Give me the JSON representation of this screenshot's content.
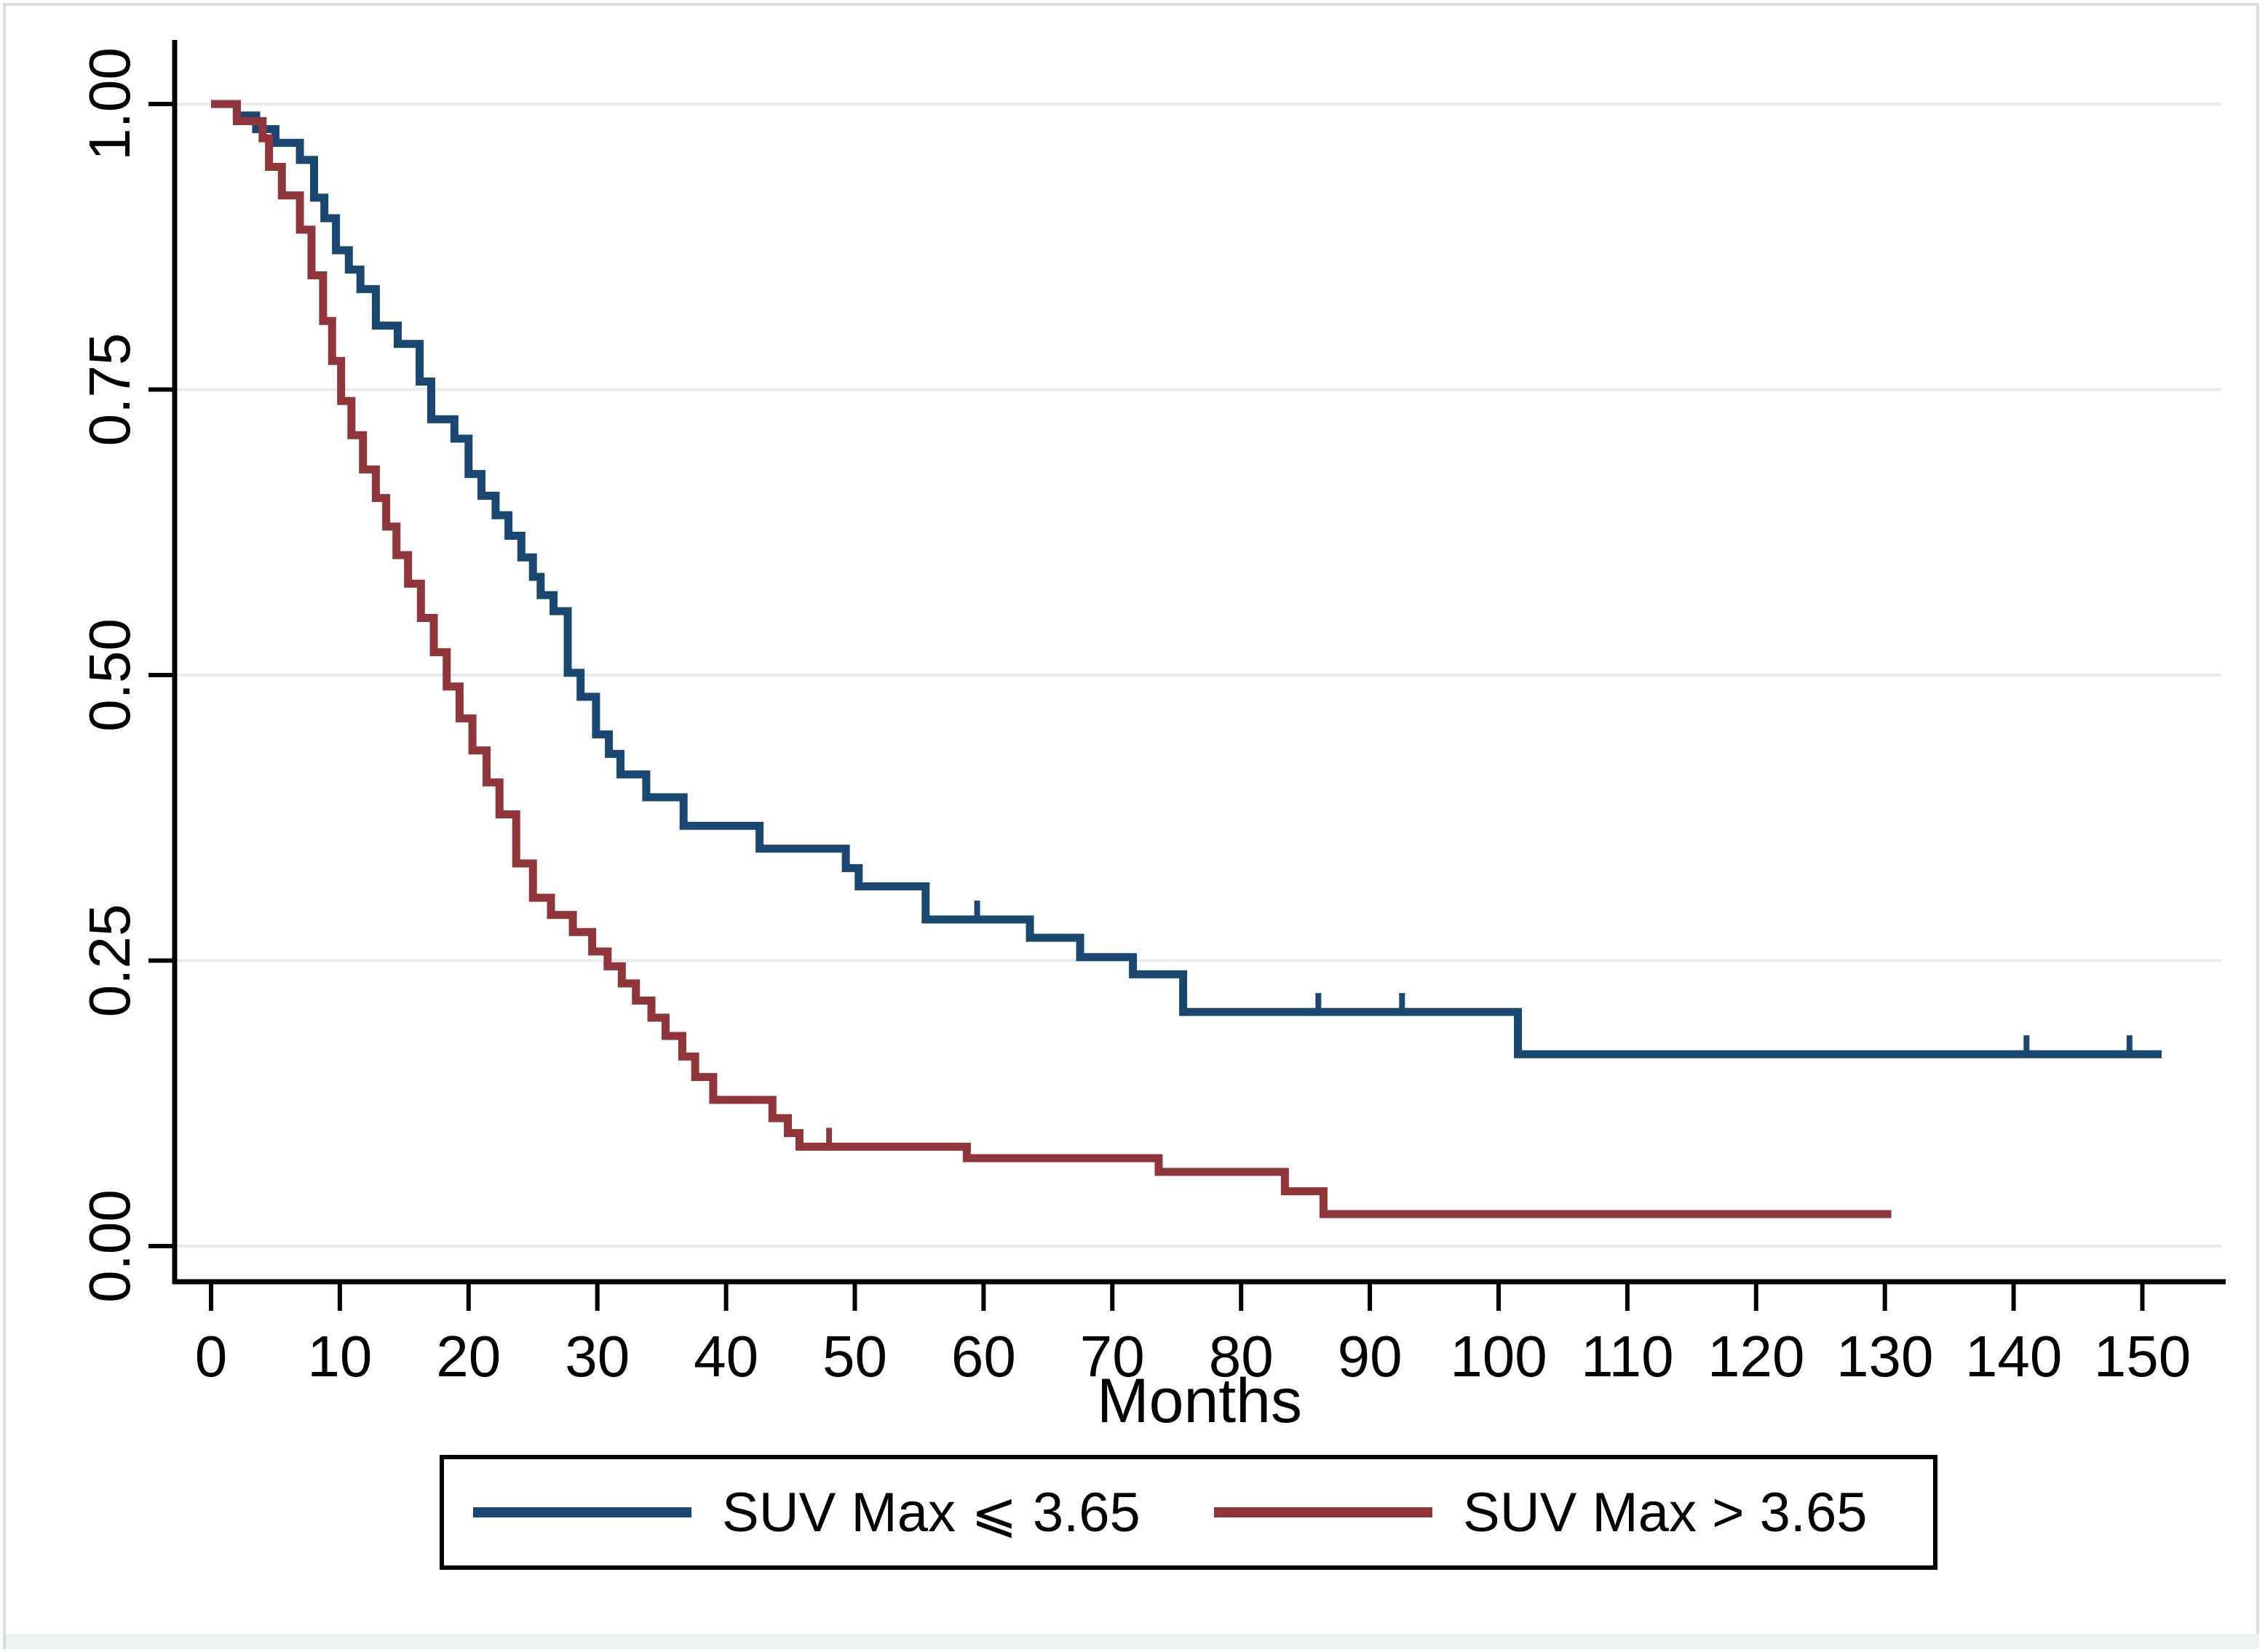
{
  "figure": {
    "background_color": "#ffffff",
    "border_color": "#d7dde0",
    "bottom_band_color": "#edf1f2",
    "gridline_color": "#e7ebeb",
    "axis_color": "#000000"
  },
  "chart_data": {
    "type": "line",
    "subtype": "kaplan-meier-step",
    "title": "",
    "xlabel": "Months",
    "ylabel": "",
    "xlim": [
      0,
      155
    ],
    "ylim": [
      0,
      1.0
    ],
    "grid": "horizontal",
    "legend_position": "bottom-center",
    "xticks": [
      0,
      10,
      20,
      30,
      40,
      50,
      60,
      70,
      80,
      90,
      100,
      110,
      120,
      130,
      140,
      150
    ],
    "xtick_labels": [
      "0",
      "10",
      "20",
      "30",
      "40",
      "50",
      "60",
      "70",
      "80",
      "90",
      "100",
      "110",
      "120",
      "130",
      "140",
      "150"
    ],
    "yticks": [
      0.0,
      0.25,
      0.5,
      0.75,
      1.0
    ],
    "ytick_labels": [
      "0.00",
      "0.25",
      "0.50",
      "0.75",
      "1.00"
    ],
    "series": [
      {
        "name": "SUV Max ⩽ 3.65",
        "color": "#1a476f",
        "start": [
          0,
          1.0
        ],
        "end_time": 151.5,
        "censor_times": [
          59.5,
          86,
          92.5,
          141,
          149
        ],
        "steps": [
          [
            2,
            0.99
          ],
          [
            3.5,
            0.978
          ],
          [
            5,
            0.966
          ],
          [
            6.9,
            0.951
          ],
          [
            8,
            0.918
          ],
          [
            8.8,
            0.9
          ],
          [
            9.7,
            0.872
          ],
          [
            10.7,
            0.855
          ],
          [
            11.6,
            0.838
          ],
          [
            12.8,
            0.806
          ],
          [
            14.5,
            0.79
          ],
          [
            16.2,
            0.757
          ],
          [
            17.1,
            0.724
          ],
          [
            18.9,
            0.707
          ],
          [
            20,
            0.676
          ],
          [
            21,
            0.657
          ],
          [
            22.1,
            0.64
          ],
          [
            23.1,
            0.622
          ],
          [
            24.1,
            0.603
          ],
          [
            25,
            0.586
          ],
          [
            25.6,
            0.57
          ],
          [
            26.6,
            0.556
          ],
          [
            27.7,
            0.502
          ],
          [
            28.7,
            0.481
          ],
          [
            29.9,
            0.448
          ],
          [
            30.9,
            0.431
          ],
          [
            31.8,
            0.413
          ],
          [
            33.8,
            0.393
          ],
          [
            36.7,
            0.368
          ],
          [
            42.6,
            0.348
          ],
          [
            49.3,
            0.331
          ],
          [
            50.3,
            0.315
          ],
          [
            55.5,
            0.286
          ],
          [
            63.6,
            0.27
          ],
          [
            67.5,
            0.253
          ],
          [
            71.6,
            0.238
          ],
          [
            75.5,
            0.205
          ],
          [
            101.5,
            0.168
          ]
        ]
      },
      {
        "name": "SUV Max > 3.65",
        "color": "#90353b",
        "start": [
          0,
          1.0
        ],
        "end_time": 130.5,
        "censor_times": [
          48
        ],
        "steps": [
          [
            2,
            0.985
          ],
          [
            4,
            0.97
          ],
          [
            4.5,
            0.945
          ],
          [
            5.5,
            0.92
          ],
          [
            6.9,
            0.89
          ],
          [
            7.8,
            0.85
          ],
          [
            8.7,
            0.81
          ],
          [
            9.4,
            0.775
          ],
          [
            10.1,
            0.74
          ],
          [
            10.9,
            0.71
          ],
          [
            11.8,
            0.68
          ],
          [
            12.8,
            0.655
          ],
          [
            13.6,
            0.63
          ],
          [
            14.4,
            0.605
          ],
          [
            15.3,
            0.58
          ],
          [
            16.3,
            0.55
          ],
          [
            17.3,
            0.52
          ],
          [
            18.3,
            0.49
          ],
          [
            19.3,
            0.462
          ],
          [
            20.3,
            0.434
          ],
          [
            21.4,
            0.406
          ],
          [
            22.4,
            0.378
          ],
          [
            23.7,
            0.335
          ],
          [
            25,
            0.305
          ],
          [
            26.4,
            0.29
          ],
          [
            28.1,
            0.275
          ],
          [
            29.6,
            0.258
          ],
          [
            30.8,
            0.245
          ],
          [
            31.9,
            0.23
          ],
          [
            33,
            0.215
          ],
          [
            34.2,
            0.2
          ],
          [
            35.3,
            0.184
          ],
          [
            36.6,
            0.166
          ],
          [
            37.6,
            0.148
          ],
          [
            39,
            0.128
          ],
          [
            43.6,
            0.112
          ],
          [
            44.8,
            0.099
          ],
          [
            45.7,
            0.087
          ],
          [
            58.7,
            0.077
          ],
          [
            73.6,
            0.065
          ],
          [
            83.4,
            0.048
          ],
          [
            86.4,
            0.028
          ]
        ]
      }
    ]
  }
}
